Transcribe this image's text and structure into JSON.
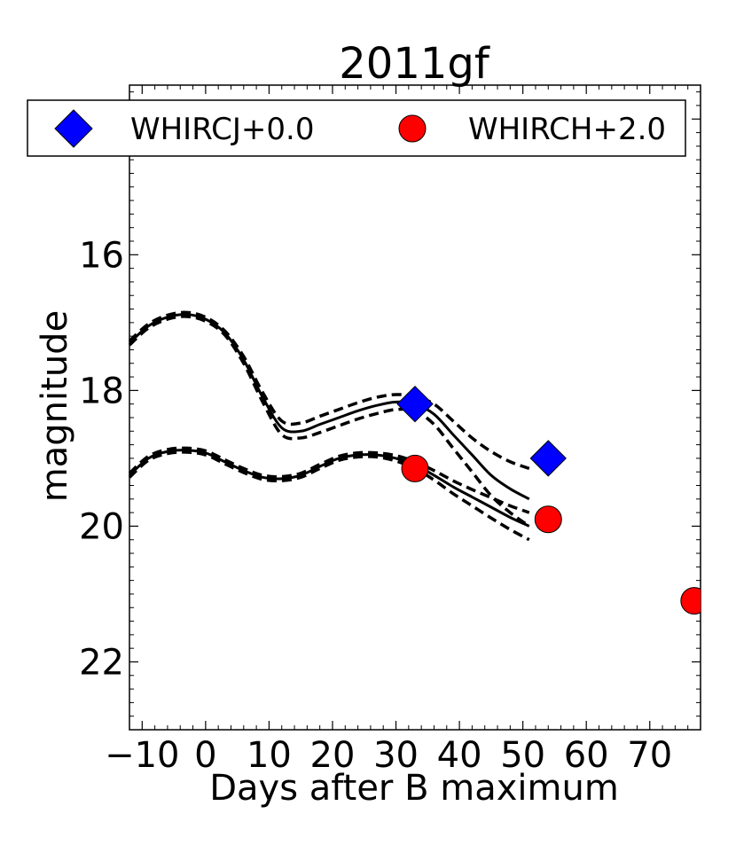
{
  "chart_data": {
    "type": "scatter",
    "title": "2011gf",
    "xlabel": "Days after B maximum",
    "ylabel": "magnitude",
    "xlim": [
      -12,
      78
    ],
    "ylim": [
      23,
      13.5
    ],
    "x_ticks": [
      -10,
      0,
      10,
      20,
      30,
      40,
      50,
      60,
      70
    ],
    "x_tick_labels": [
      "−10",
      "0",
      "10",
      "20",
      "30",
      "40",
      "50",
      "60",
      "70"
    ],
    "y_ticks": [
      14,
      16,
      18,
      20,
      22
    ],
    "y_tick_labels": [
      "14",
      "16",
      "18",
      "20",
      "22"
    ],
    "legend": {
      "placement": "top",
      "columns": 2
    },
    "series": [
      {
        "name": "WHIRCJ+0.0",
        "marker": "diamond",
        "color": "#0000ff",
        "points": [
          {
            "x": 33,
            "y": 18.2
          },
          {
            "x": 54,
            "y": 19.0
          }
        ]
      },
      {
        "name": "WHIRCH+2.0",
        "marker": "circle",
        "color": "#ff0000",
        "points": [
          {
            "x": 33,
            "y": 19.15
          },
          {
            "x": 54,
            "y": 19.9
          },
          {
            "x": 77,
            "y": 21.1
          }
        ]
      }
    ],
    "model_curves": [
      {
        "name": "J template",
        "style": "solid",
        "x": [
          -12,
          -9,
          -6,
          -3,
          0,
          3,
          6,
          9,
          12,
          15,
          18,
          21,
          24,
          27,
          30,
          33,
          36,
          39,
          42,
          45,
          48,
          51
        ],
        "y": [
          17.3,
          17.05,
          16.92,
          16.88,
          16.95,
          17.15,
          17.55,
          18.1,
          18.55,
          18.6,
          18.5,
          18.4,
          18.3,
          18.22,
          18.17,
          18.2,
          18.35,
          18.65,
          18.95,
          19.25,
          19.45,
          19.6
        ]
      },
      {
        "name": "J template upper",
        "style": "dashed",
        "x": [
          -12,
          -9,
          -6,
          -3,
          0,
          3,
          6,
          9,
          12,
          15,
          18,
          21,
          24,
          27,
          30,
          33,
          36,
          39,
          42,
          45,
          48,
          51
        ],
        "y": [
          17.27,
          17.02,
          16.89,
          16.85,
          16.92,
          17.12,
          17.5,
          18.03,
          18.45,
          18.48,
          18.38,
          18.28,
          18.18,
          18.1,
          18.06,
          18.09,
          18.2,
          18.45,
          18.7,
          18.9,
          19.05,
          19.15
        ]
      },
      {
        "name": "J template lower",
        "style": "dashed",
        "x": [
          -12,
          -9,
          -6,
          -3,
          0,
          3,
          6,
          9,
          12,
          15,
          18,
          21,
          24,
          27,
          30,
          33,
          36,
          39,
          42,
          45,
          48,
          51
        ],
        "y": [
          17.33,
          17.08,
          16.95,
          16.91,
          16.98,
          17.18,
          17.6,
          18.17,
          18.65,
          18.7,
          18.62,
          18.52,
          18.42,
          18.34,
          18.28,
          18.3,
          18.5,
          18.85,
          19.2,
          19.55,
          19.8,
          20.0
        ]
      },
      {
        "name": "H template",
        "style": "solid",
        "x": [
          -12,
          -9,
          -6,
          -3,
          0,
          3,
          6,
          9,
          12,
          15,
          18,
          21,
          24,
          27,
          30,
          33,
          36,
          39,
          42,
          45,
          48,
          51
        ],
        "y": [
          19.25,
          19.0,
          18.9,
          18.88,
          18.92,
          19.05,
          19.18,
          19.28,
          19.3,
          19.25,
          19.12,
          19.0,
          18.95,
          18.95,
          19.0,
          19.1,
          19.25,
          19.42,
          19.57,
          19.72,
          19.87,
          20.0
        ]
      },
      {
        "name": "H template upper",
        "style": "dashed",
        "x": [
          -12,
          -9,
          -6,
          -3,
          0,
          3,
          6,
          9,
          12,
          15,
          18,
          21,
          24,
          27,
          30,
          33,
          36,
          39,
          42,
          45,
          48,
          51
        ],
        "y": [
          19.22,
          18.97,
          18.87,
          18.85,
          18.89,
          19.02,
          19.15,
          19.25,
          19.27,
          19.22,
          19.09,
          18.97,
          18.92,
          18.92,
          18.96,
          19.05,
          19.18,
          19.33,
          19.46,
          19.58,
          19.7,
          19.8
        ]
      },
      {
        "name": "H template lower",
        "style": "dashed",
        "x": [
          -12,
          -9,
          -6,
          -3,
          0,
          3,
          6,
          9,
          12,
          15,
          18,
          21,
          24,
          27,
          30,
          33,
          36,
          39,
          42,
          45,
          48,
          51
        ],
        "y": [
          19.28,
          19.03,
          18.93,
          18.91,
          18.95,
          19.08,
          19.21,
          19.31,
          19.33,
          19.28,
          19.15,
          19.03,
          18.98,
          18.98,
          19.04,
          19.15,
          19.32,
          19.52,
          19.7,
          19.88,
          20.05,
          20.2
        ]
      }
    ]
  }
}
